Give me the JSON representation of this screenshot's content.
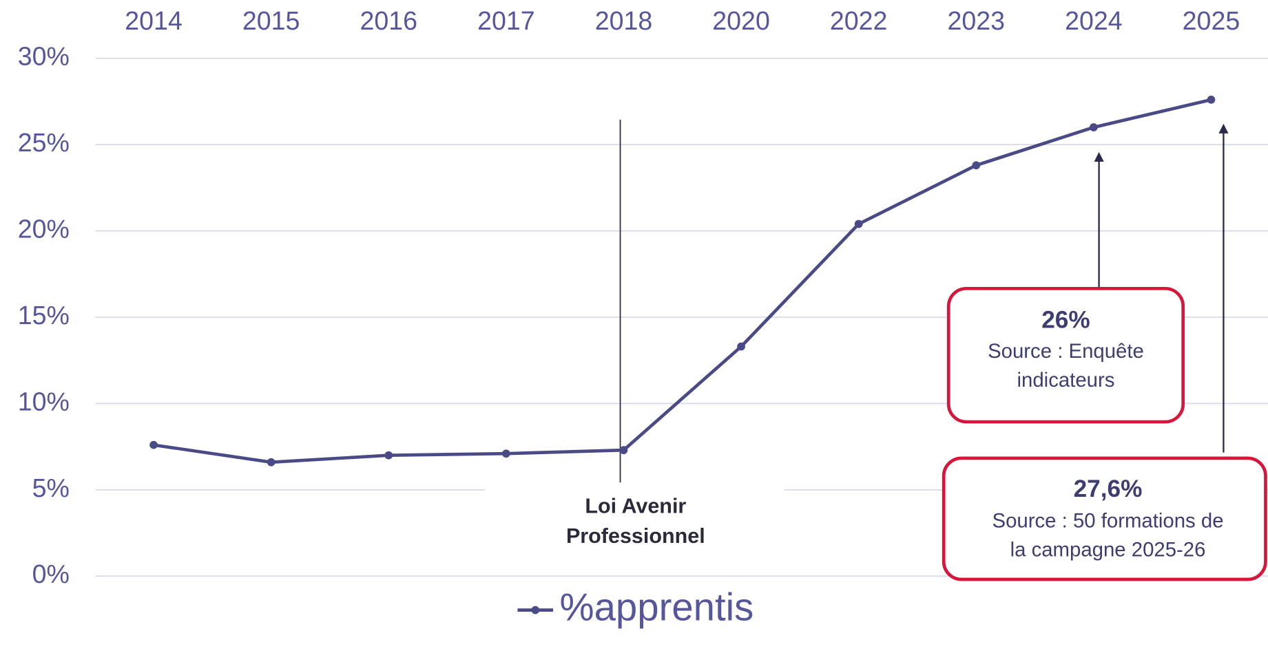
{
  "chart_data": {
    "type": "line",
    "categories": [
      "2014",
      "2015",
      "2016",
      "2017",
      "2018",
      "2020",
      "2022",
      "2023",
      "2024",
      "2025"
    ],
    "series": [
      {
        "name": "%apprentis",
        "color": "#4a4a86",
        "values": [
          7.6,
          6.6,
          7.0,
          7.1,
          7.3,
          13.3,
          20.4,
          23.8,
          26.0,
          27.6
        ]
      }
    ],
    "ylim": [
      0,
      30
    ],
    "yticks": [
      {
        "value": 0,
        "label": "0%"
      },
      {
        "value": 5,
        "label": "5%"
      },
      {
        "value": 10,
        "label": "10%"
      },
      {
        "value": 15,
        "label": "15%"
      },
      {
        "value": 20,
        "label": "20%"
      },
      {
        "value": 25,
        "label": "25%"
      },
      {
        "value": 30,
        "label": "30%"
      }
    ],
    "grid": true,
    "legend": "bottom",
    "annotations": [
      {
        "lines": [
          "Loi Avenir",
          "Professionnel"
        ]
      },
      {
        "title": "26%",
        "lines": [
          "Source : Enquête",
          "indicateurs"
        ]
      },
      {
        "title": "27,6%",
        "lines": [
          "Source : 50 formations de",
          "la campagne 2025-26"
        ]
      }
    ]
  }
}
